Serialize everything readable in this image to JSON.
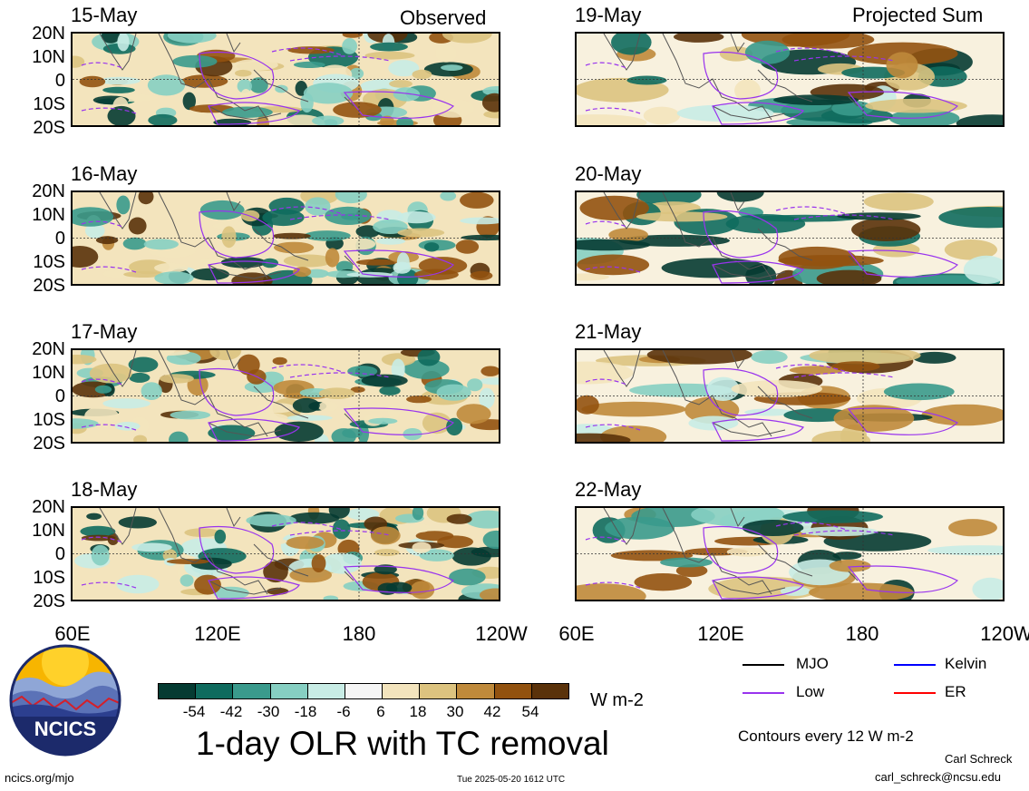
{
  "header": {
    "left_title": "Observed",
    "right_title": "Projected Sum"
  },
  "observed_panels": [
    {
      "date": "15-May"
    },
    {
      "date": "16-May"
    },
    {
      "date": "17-May"
    },
    {
      "date": "18-May"
    }
  ],
  "projected_panels": [
    {
      "date": "19-May"
    },
    {
      "date": "20-May"
    },
    {
      "date": "21-May"
    },
    {
      "date": "22-May"
    }
  ],
  "lat_ticks": [
    "20N",
    "10N",
    "0",
    "10S",
    "20S"
  ],
  "lon_ticks": [
    "60E",
    "120E",
    "180",
    "120W"
  ],
  "colorbar": {
    "colors": [
      "#053b32",
      "#0f6b5e",
      "#3a9a8c",
      "#86cfc2",
      "#c8ece5",
      "#f5f5f5",
      "#f3e4bd",
      "#dcc37f",
      "#bf8a3b",
      "#92520f",
      "#5a320a"
    ],
    "ticks": [
      "-54",
      "-42",
      "-30",
      "-18",
      "-6",
      "6",
      "18",
      "30",
      "42",
      "54"
    ],
    "unit": "W m-2"
  },
  "main_title": "1-day OLR with TC removal",
  "legend": {
    "items": [
      {
        "label": "MJO",
        "color": "#000000"
      },
      {
        "label": "Kelvin",
        "color": "#0000ff"
      },
      {
        "label": "Low",
        "color": "#9933ee"
      },
      {
        "label": "ER",
        "color": "#ff0000"
      }
    ],
    "contour_note": "Contours every 12 W m-2"
  },
  "footer": {
    "site": "ncics.org/mjo",
    "timestamp": "Tue 2025-05-20 1612 UTC",
    "author": "Carl Schreck",
    "email": "carl_schreck@ncsu.edu"
  },
  "logo": {
    "text": "NCICS"
  }
}
